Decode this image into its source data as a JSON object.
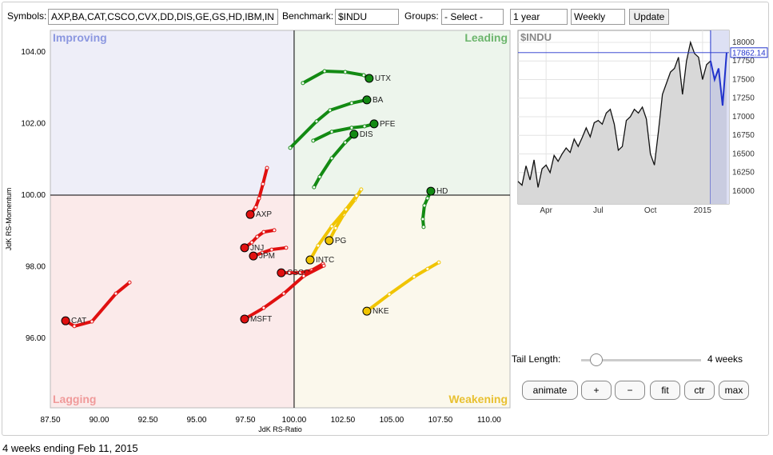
{
  "toolbar": {
    "symbols_label": "Symbols:",
    "symbols": "AXP,BA,CAT,CSCO,CVX,DD,DIS,GE,GS,HD,IBM,IN",
    "benchmark_label": "Benchmark:",
    "benchmark": "$INDU",
    "groups_label": "Groups:",
    "groups": "- Select -",
    "period": "1 year",
    "interval": "Weekly",
    "update": "Update"
  },
  "controls": {
    "tail_label": "Tail Length:",
    "tail_value": "4 weeks",
    "buttons": [
      "animate",
      "+",
      "−",
      "fit",
      "ctr",
      "max"
    ]
  },
  "footer": "4 weeks ending Feb 11, 2015",
  "chart_data": [
    {
      "type": "scatter",
      "x_label": "JdK RS-Ratio",
      "y_label": "JdK RS-Momentum",
      "quadrants": {
        "top_left": "Improving",
        "top_right": "Leading",
        "bottom_left": "Lagging",
        "bottom_right": "Weakening"
      },
      "xlim": [
        87.5,
        111.07
      ],
      "ylim": [
        94.06,
        104.6
      ],
      "xticks": [
        {
          "value": 87.5,
          "label": "87.50"
        },
        {
          "value": 90,
          "label": "90.00"
        },
        {
          "value": 92.5,
          "label": "92.50"
        },
        {
          "value": 95,
          "label": "95.00"
        },
        {
          "value": 97.5,
          "label": "97.50"
        },
        {
          "value": 100,
          "label": "100.00"
        },
        {
          "value": 102.5,
          "label": "102.50"
        },
        {
          "value": 105,
          "label": "105.00"
        },
        {
          "value": 107.5,
          "label": "107.50"
        },
        {
          "value": 110,
          "label": "110.00"
        }
      ],
      "yticks": [
        {
          "value": 96,
          "label": "96.00"
        },
        {
          "value": 98,
          "label": "98.00"
        },
        {
          "value": 100,
          "label": "100.00"
        },
        {
          "value": 102,
          "label": "102.00"
        },
        {
          "value": 104,
          "label": "104.00"
        }
      ],
      "series": [
        {
          "name": "UTX",
          "color": "#138a13",
          "x": [
            100.45,
            101.56,
            102.62,
            103.57,
            103.85
          ],
          "values": [
            103.13,
            103.46,
            103.44,
            103.35,
            103.26
          ]
        },
        {
          "name": "BA",
          "color": "#138a13",
          "x": [
            99.8,
            101.15,
            101.84,
            102.95,
            103.73
          ],
          "values": [
            101.32,
            102.06,
            102.37,
            102.57,
            102.66
          ]
        },
        {
          "name": "PFE",
          "color": "#138a13",
          "x": [
            100.98,
            101.93,
            102.95,
            103.61,
            104.1
          ],
          "values": [
            101.52,
            101.77,
            101.88,
            101.92,
            101.99
          ]
        },
        {
          "name": "DIS",
          "color": "#138a13",
          "x": [
            101.02,
            101.31,
            101.93,
            102.62,
            103.07
          ],
          "values": [
            100.22,
            100.51,
            101.03,
            101.47,
            101.7
          ]
        },
        {
          "name": "HD",
          "color": "#138a13",
          "x": [
            106.64,
            106.6,
            106.68,
            106.84,
            107.01
          ],
          "values": [
            99.11,
            99.33,
            99.71,
            99.91,
            100.11
          ]
        },
        {
          "name": "AXP",
          "color": "#e01010",
          "x": [
            98.61,
            98.4,
            98.2,
            98.03,
            97.75
          ],
          "values": [
            100.76,
            100.31,
            99.91,
            99.66,
            99.46
          ]
        },
        {
          "name": "JNJ",
          "color": "#e01010",
          "x": [
            98.98,
            98.44,
            98.11,
            97.83,
            97.46
          ],
          "values": [
            99.02,
            98.97,
            98.84,
            98.68,
            98.53
          ]
        },
        {
          "name": "JPM",
          "color": "#e01010",
          "x": [
            99.59,
            98.85,
            98.36,
            98.03,
            97.91
          ],
          "values": [
            98.53,
            98.48,
            98.39,
            98.32,
            98.3
          ]
        },
        {
          "name": "CSCO",
          "color": "#e01010",
          "x": [
            101.48,
            100.9,
            100.29,
            99.75,
            99.34
          ],
          "values": [
            98.08,
            97.9,
            97.83,
            97.83,
            97.83
          ]
        },
        {
          "name": "CAT",
          "color": "#e01010",
          "x": [
            91.56,
            90.86,
            89.63,
            88.73,
            88.28
          ],
          "values": [
            97.56,
            97.25,
            96.47,
            96.34,
            96.49
          ]
        },
        {
          "name": "MSFT",
          "color": "#e01010",
          "x": [
            101.52,
            100.49,
            99.47,
            98.44,
            97.46
          ],
          "values": [
            98.03,
            97.74,
            97.25,
            96.85,
            96.54
          ]
        },
        {
          "name": "PG",
          "color": "#f0c400",
          "x": [
            103.44,
            103.11,
            102.54,
            102.13,
            101.8
          ],
          "values": [
            100.16,
            99.87,
            99.46,
            99.08,
            98.73
          ]
        },
        {
          "name": "INTC",
          "color": "#f0c400",
          "x": [
            103.2,
            102.66,
            101.93,
            101.23,
            100.82
          ],
          "values": [
            99.98,
            99.6,
            99.13,
            98.59,
            98.19
          ]
        },
        {
          "name": "NKE",
          "color": "#f0c400",
          "x": [
            107.42,
            106.84,
            106.15,
            104.88,
            103.73
          ],
          "values": [
            98.12,
            97.94,
            97.72,
            97.23,
            96.76
          ]
        }
      ]
    },
    {
      "type": "line",
      "title": "$INDU",
      "xlim": [
        0,
        52.6
      ],
      "ylim": [
        15828,
        18161
      ],
      "xticks": [
        {
          "value": 7,
          "label": "Apr"
        },
        {
          "value": 20,
          "label": "Jul"
        },
        {
          "value": 33,
          "label": "Oct"
        },
        {
          "value": 46,
          "label": "2015"
        }
      ],
      "yticks": [
        16000,
        16250,
        16500,
        16750,
        17000,
        17250,
        17500,
        17750,
        18000
      ],
      "x": [
        0,
        1,
        2,
        3,
        4,
        5,
        6,
        7,
        8,
        9,
        10,
        11,
        12,
        13,
        14,
        15,
        16,
        17,
        18,
        19,
        20,
        21,
        22,
        23,
        24,
        25,
        26,
        27,
        28,
        29,
        30,
        31,
        32,
        33,
        34,
        35,
        36,
        37,
        38,
        39,
        40,
        41,
        42,
        43,
        44,
        45,
        46,
        47,
        48,
        49,
        50,
        51,
        52
      ],
      "series": [
        {
          "color": "#111111",
          "values": [
            16130,
            16080,
            16340,
            16150,
            16420,
            16050,
            16300,
            16350,
            16250,
            16480,
            16400,
            16500,
            16580,
            16520,
            16700,
            16600,
            16720,
            16850,
            16730,
            16920,
            16950,
            16900,
            17050,
            17100,
            16900,
            16550,
            16600,
            16950,
            17000,
            17100,
            17050,
            17130,
            16970,
            16500,
            16350,
            16800,
            17300,
            17450,
            17600,
            17650,
            17800,
            17300,
            17750,
            18000,
            17850,
            17800,
            17500,
            17700,
            17750,
            null,
            null,
            null,
            null
          ]
        },
        {
          "color": "#2233cc",
          "values": [
            null,
            null,
            null,
            null,
            null,
            null,
            null,
            null,
            null,
            null,
            null,
            null,
            null,
            null,
            null,
            null,
            null,
            null,
            null,
            null,
            null,
            null,
            null,
            null,
            null,
            null,
            null,
            null,
            null,
            null,
            null,
            null,
            null,
            null,
            null,
            null,
            null,
            null,
            null,
            null,
            null,
            null,
            null,
            null,
            null,
            null,
            null,
            null,
            17750,
            17500,
            17650,
            17150,
            17862.14
          ]
        }
      ]
    }
  ]
}
